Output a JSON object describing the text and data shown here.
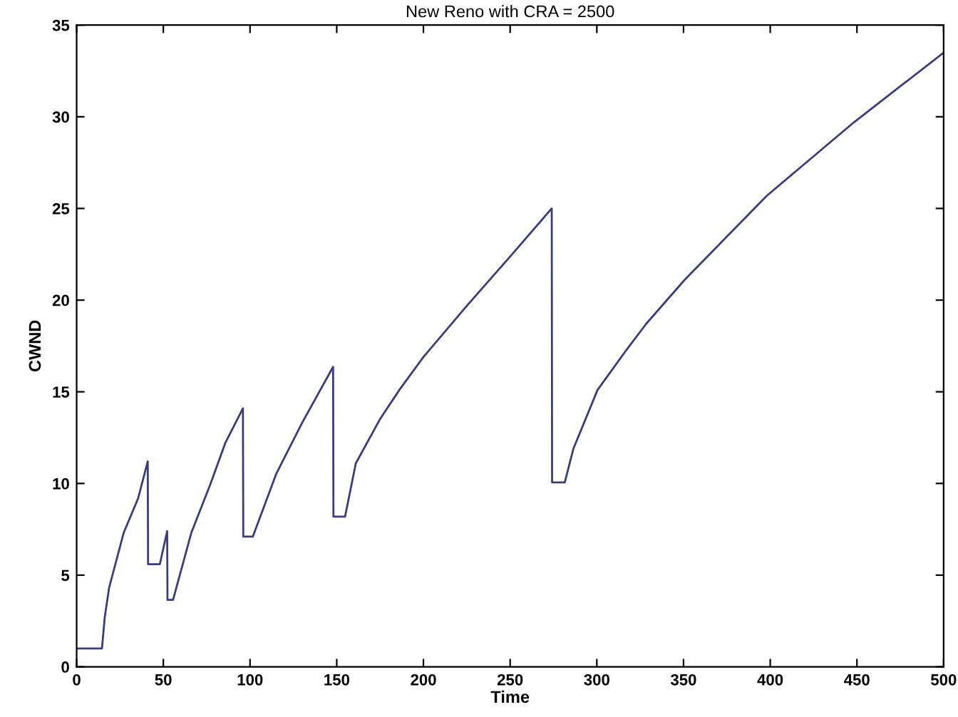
{
  "chart_data": {
    "type": "line",
    "title": "New Reno with CRA = 2500",
    "xlabel": "Time",
    "ylabel": "CWND",
    "xlim": [
      0,
      500
    ],
    "xticks": [
      0,
      50,
      100,
      150,
      200,
      250,
      300,
      350,
      400,
      450,
      500
    ],
    "ylim": [
      0,
      35
    ],
    "yticks": [
      0,
      5,
      10,
      15,
      20,
      25,
      30,
      35
    ],
    "grid": false,
    "marker": "none",
    "line_style": "solid",
    "series": [
      {
        "color": "#3c3c78",
        "x": [
          0,
          14.6,
          16.2,
          18.7,
          27.1,
          35.5,
          41,
          41.2,
          48,
          52.2,
          52.4,
          55.6,
          66.1,
          77.3,
          85.7,
          95.9,
          96.1,
          101.6,
          115,
          130,
          147.9,
          148.1,
          154.8,
          161,
          174.9,
          186.1,
          200,
          225.1,
          250.2,
          274,
          274.2,
          281.5,
          286.5,
          300.4,
          317.2,
          328.4,
          350.6,
          398.1,
          423.2,
          448.3,
          500
        ],
        "values": [
          1,
          1,
          2.7,
          4.3,
          7.3,
          9.2,
          11.2,
          5.6,
          5.6,
          7.4,
          3.65,
          3.65,
          7.3,
          10,
          12.2,
          14.1,
          7.1,
          7.1,
          10.5,
          13.3,
          16.36,
          8.19,
          8.19,
          11.1,
          13.5,
          15.1,
          16.9,
          19.7,
          22.4,
          25,
          10.06,
          10.06,
          11.9,
          15.1,
          17.3,
          18.7,
          21.1,
          25.7,
          27.7,
          29.7,
          33.5
        ]
      }
    ]
  }
}
